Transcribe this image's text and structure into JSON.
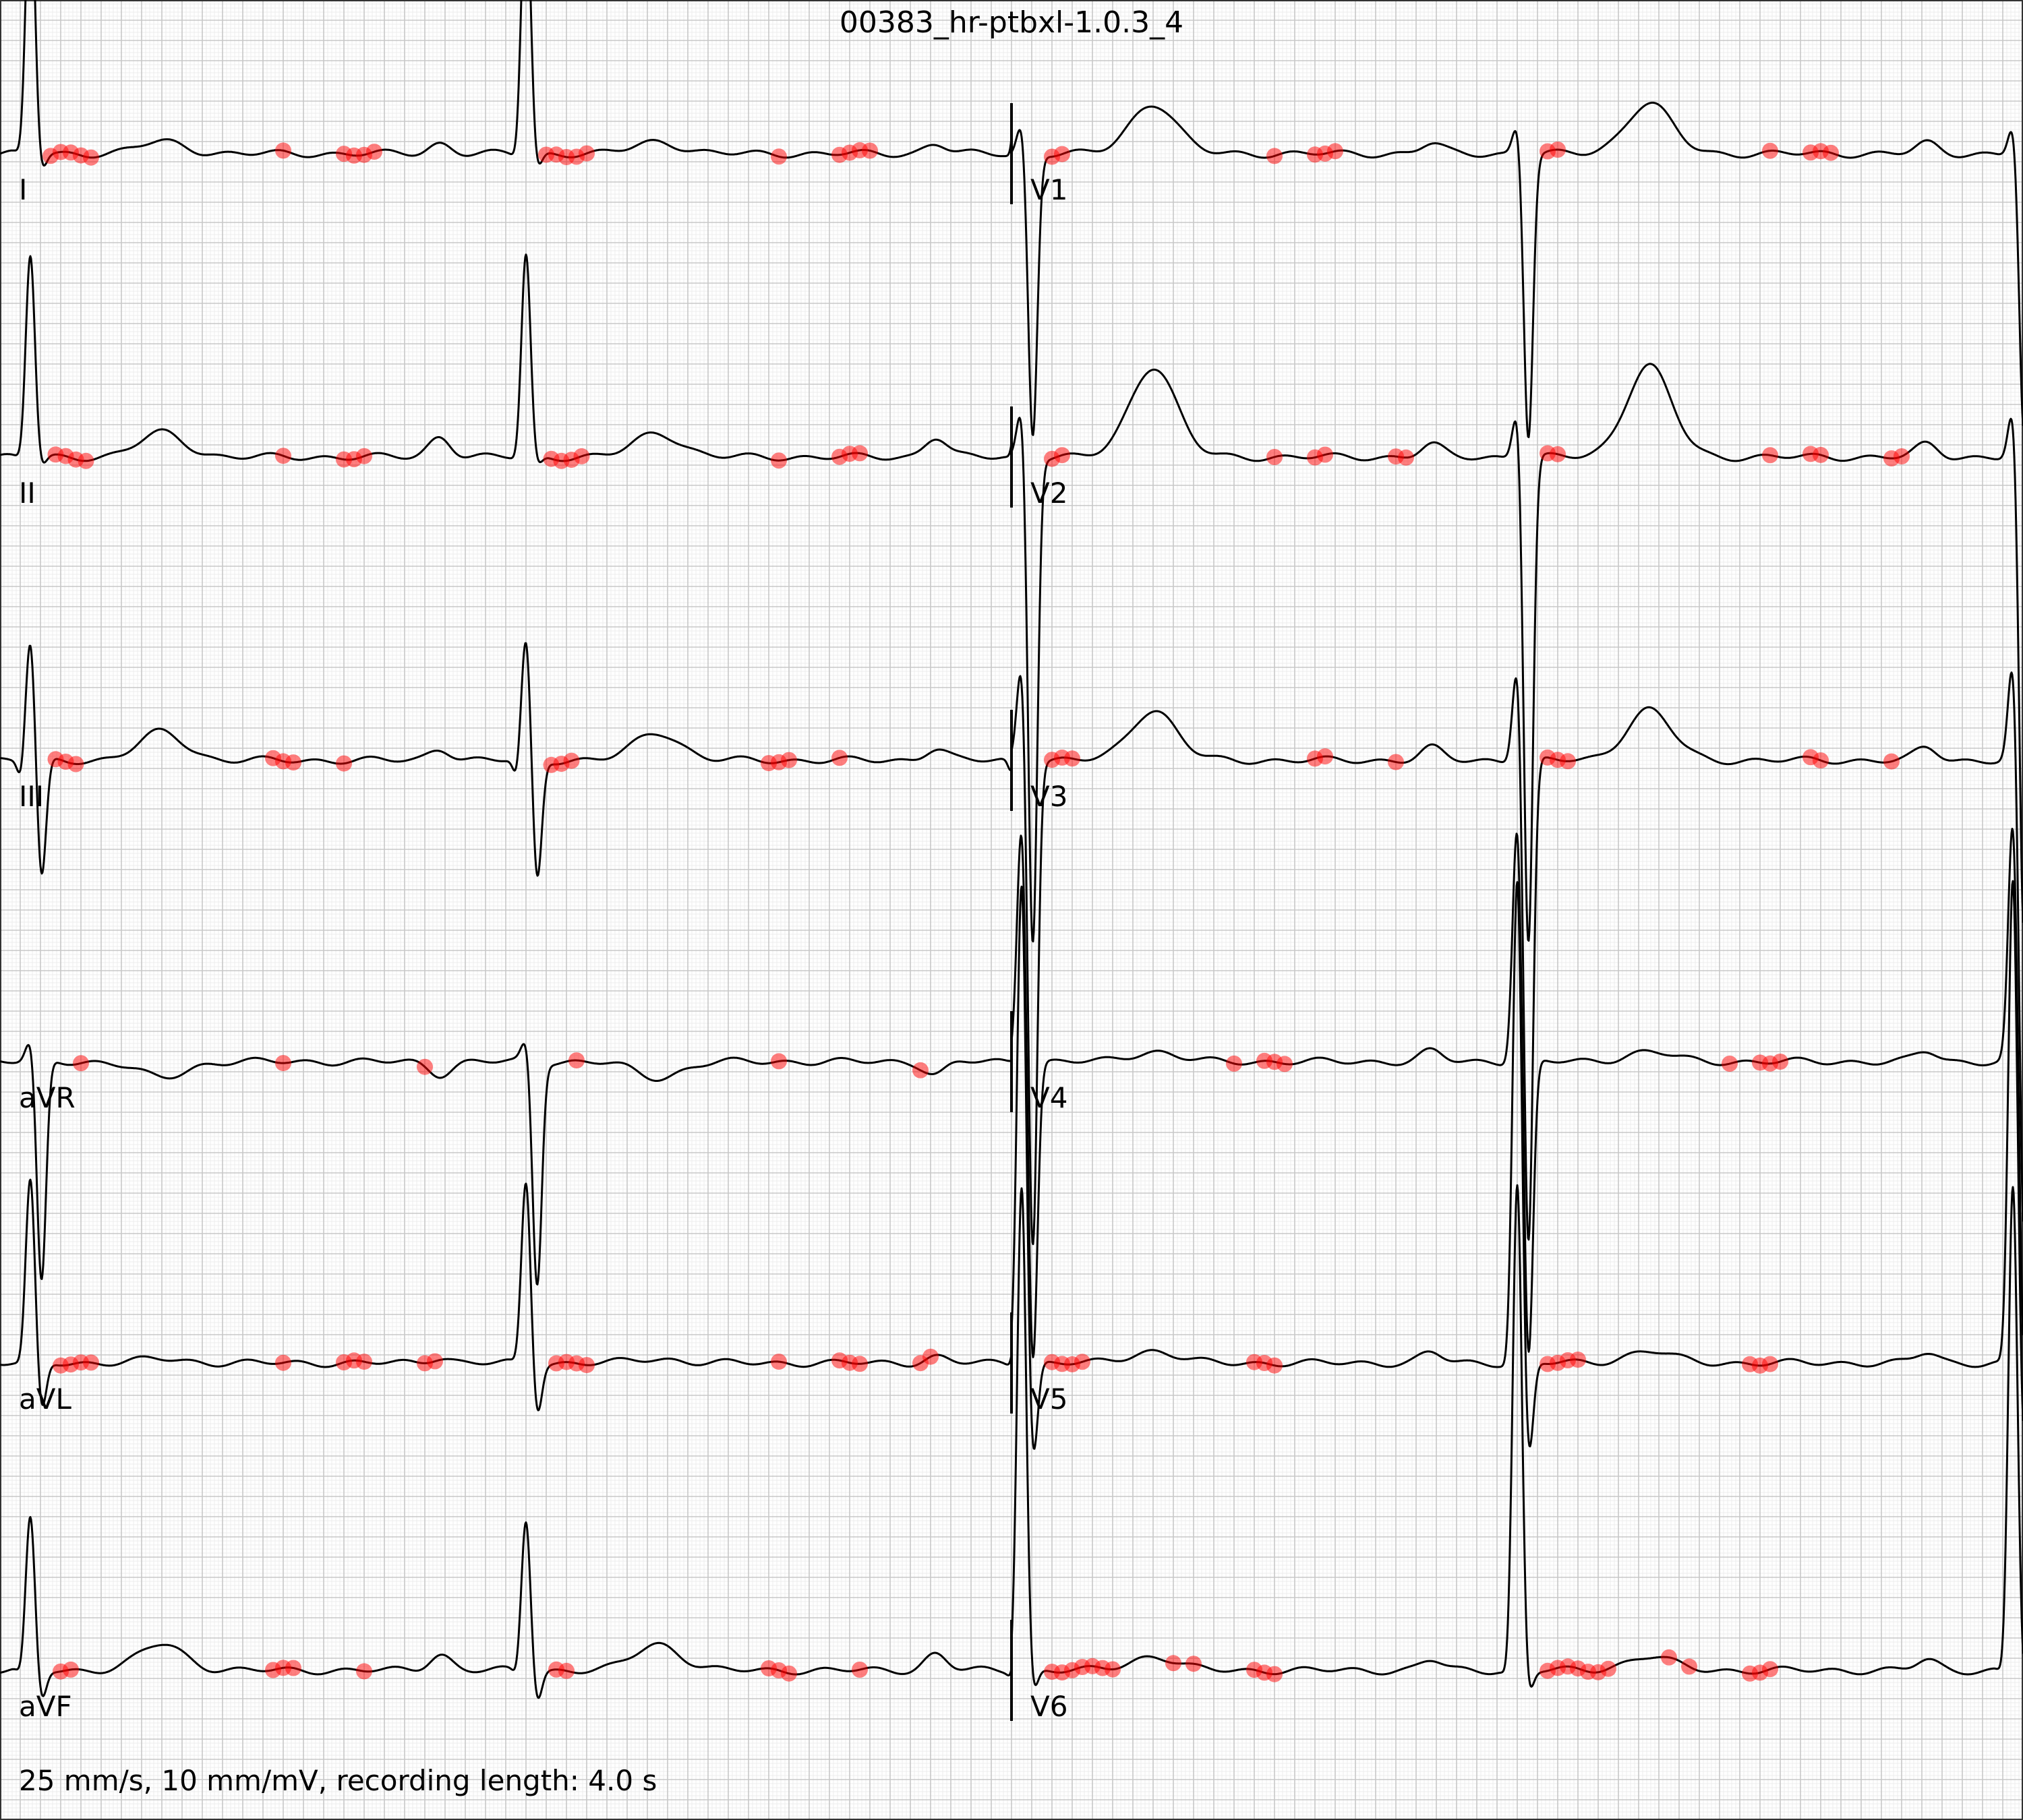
{
  "chart_data": {
    "type": "line",
    "title": "00383_hr-ptbxl-1.0.3_4",
    "footer": "25 mm/s, 10 mm/mV, recording length: 4.0 s",
    "paper_speed_mm_per_s": 25,
    "gain_mm_per_mV": 10,
    "recording_length_s": 4.0,
    "grid": true,
    "colors": {
      "trace": "#000000",
      "grid_minor": "#ececec",
      "grid_major": "#c8c8c8",
      "marker": "#ff0000"
    },
    "heart_rate_period_s": 0.98,
    "leads": [
      {
        "name": "I",
        "column": 0,
        "row": 0,
        "r_mV": 1.35,
        "s_mV": 0.08,
        "q_mV": 0.03,
        "p_mV": 0.05,
        "t_mV": 0.06,
        "marker_offsets_s": [
          0.04,
          0.06,
          0.08,
          0.1,
          0.12,
          0.5,
          0.62,
          0.64,
          0.66,
          0.68
        ]
      },
      {
        "name": "II",
        "column": 0,
        "row": 1,
        "r_mV": 1.0,
        "s_mV": 0.05,
        "q_mV": 0.02,
        "p_mV": 0.1,
        "t_mV": 0.12,
        "marker_offsets_s": [
          0.05,
          0.07,
          0.09,
          0.11,
          0.5,
          0.62,
          0.64,
          0.66
        ]
      },
      {
        "name": "III",
        "column": 0,
        "row": 2,
        "r_mV": 0.6,
        "s_mV": 0.6,
        "q_mV": 0.1,
        "p_mV": 0.06,
        "t_mV": 0.14,
        "marker_offsets_s": [
          0.05,
          0.07,
          0.09,
          0.48,
          0.5,
          0.52,
          0.62
        ]
      },
      {
        "name": "aVR",
        "column": 0,
        "row": 3,
        "r_mV": 0.1,
        "s_mV": 1.1,
        "q_mV": 0.0,
        "p_mV": -0.06,
        "t_mV": -0.08,
        "marker_offsets_s": [
          0.1,
          0.5,
          0.78
        ]
      },
      {
        "name": "aVL",
        "column": 0,
        "row": 4,
        "r_mV": 0.9,
        "s_mV": 0.25,
        "q_mV": 0.02,
        "p_mV": 0.03,
        "t_mV": 0.02,
        "marker_offsets_s": [
          0.06,
          0.08,
          0.1,
          0.12,
          0.5,
          0.62,
          0.64,
          0.66,
          0.78,
          0.8
        ]
      },
      {
        "name": "aVF",
        "column": 0,
        "row": 5,
        "r_mV": 0.75,
        "s_mV": 0.15,
        "q_mV": 0.04,
        "p_mV": 0.08,
        "t_mV": 0.13,
        "marker_offsets_s": [
          0.06,
          0.08,
          0.48,
          0.5,
          0.52,
          0.66
        ]
      },
      {
        "name": "V1",
        "column": 1,
        "row": 0,
        "r_mV": 0.15,
        "s_mV": 1.4,
        "q_mV": 0.0,
        "p_mV": 0.05,
        "t_mV": 0.25,
        "marker_offsets_s": [
          0.06,
          0.08,
          0.5,
          0.58,
          0.6,
          0.62
        ]
      },
      {
        "name": "V2",
        "column": 1,
        "row": 1,
        "r_mV": 0.25,
        "s_mV": 2.4,
        "q_mV": 0.0,
        "p_mV": 0.06,
        "t_mV": 0.45,
        "marker_offsets_s": [
          0.06,
          0.08,
          0.5,
          0.58,
          0.6,
          0.74,
          0.76
        ]
      },
      {
        "name": "V3",
        "column": 1,
        "row": 2,
        "r_mV": 0.5,
        "s_mV": 2.4,
        "q_mV": 0.0,
        "p_mV": 0.06,
        "t_mV": 0.25,
        "marker_offsets_s": [
          0.06,
          0.08,
          0.1,
          0.58,
          0.6,
          0.74
        ]
      },
      {
        "name": "V4",
        "column": 1,
        "row": 3,
        "r_mV": 1.2,
        "s_mV": 1.5,
        "q_mV": 0.0,
        "p_mV": 0.05,
        "t_mV": 0.05,
        "marker_offsets_s": [
          0.42,
          0.48,
          0.5,
          0.52
        ]
      },
      {
        "name": "V5",
        "column": 1,
        "row": 4,
        "r_mV": 2.4,
        "s_mV": 0.5,
        "q_mV": 0.03,
        "p_mV": 0.05,
        "t_mV": 0.06,
        "marker_offsets_s": [
          0.06,
          0.08,
          0.1,
          0.12,
          0.46,
          0.48,
          0.5
        ]
      },
      {
        "name": "V6",
        "column": 1,
        "row": 5,
        "r_mV": 2.4,
        "s_mV": 0.12,
        "q_mV": 0.05,
        "p_mV": 0.05,
        "t_mV": 0.07,
        "marker_offsets_s": [
          0.06,
          0.08,
          0.1,
          0.12,
          0.14,
          0.16,
          0.18,
          0.3,
          0.34,
          0.46,
          0.48,
          0.5
        ]
      }
    ]
  }
}
